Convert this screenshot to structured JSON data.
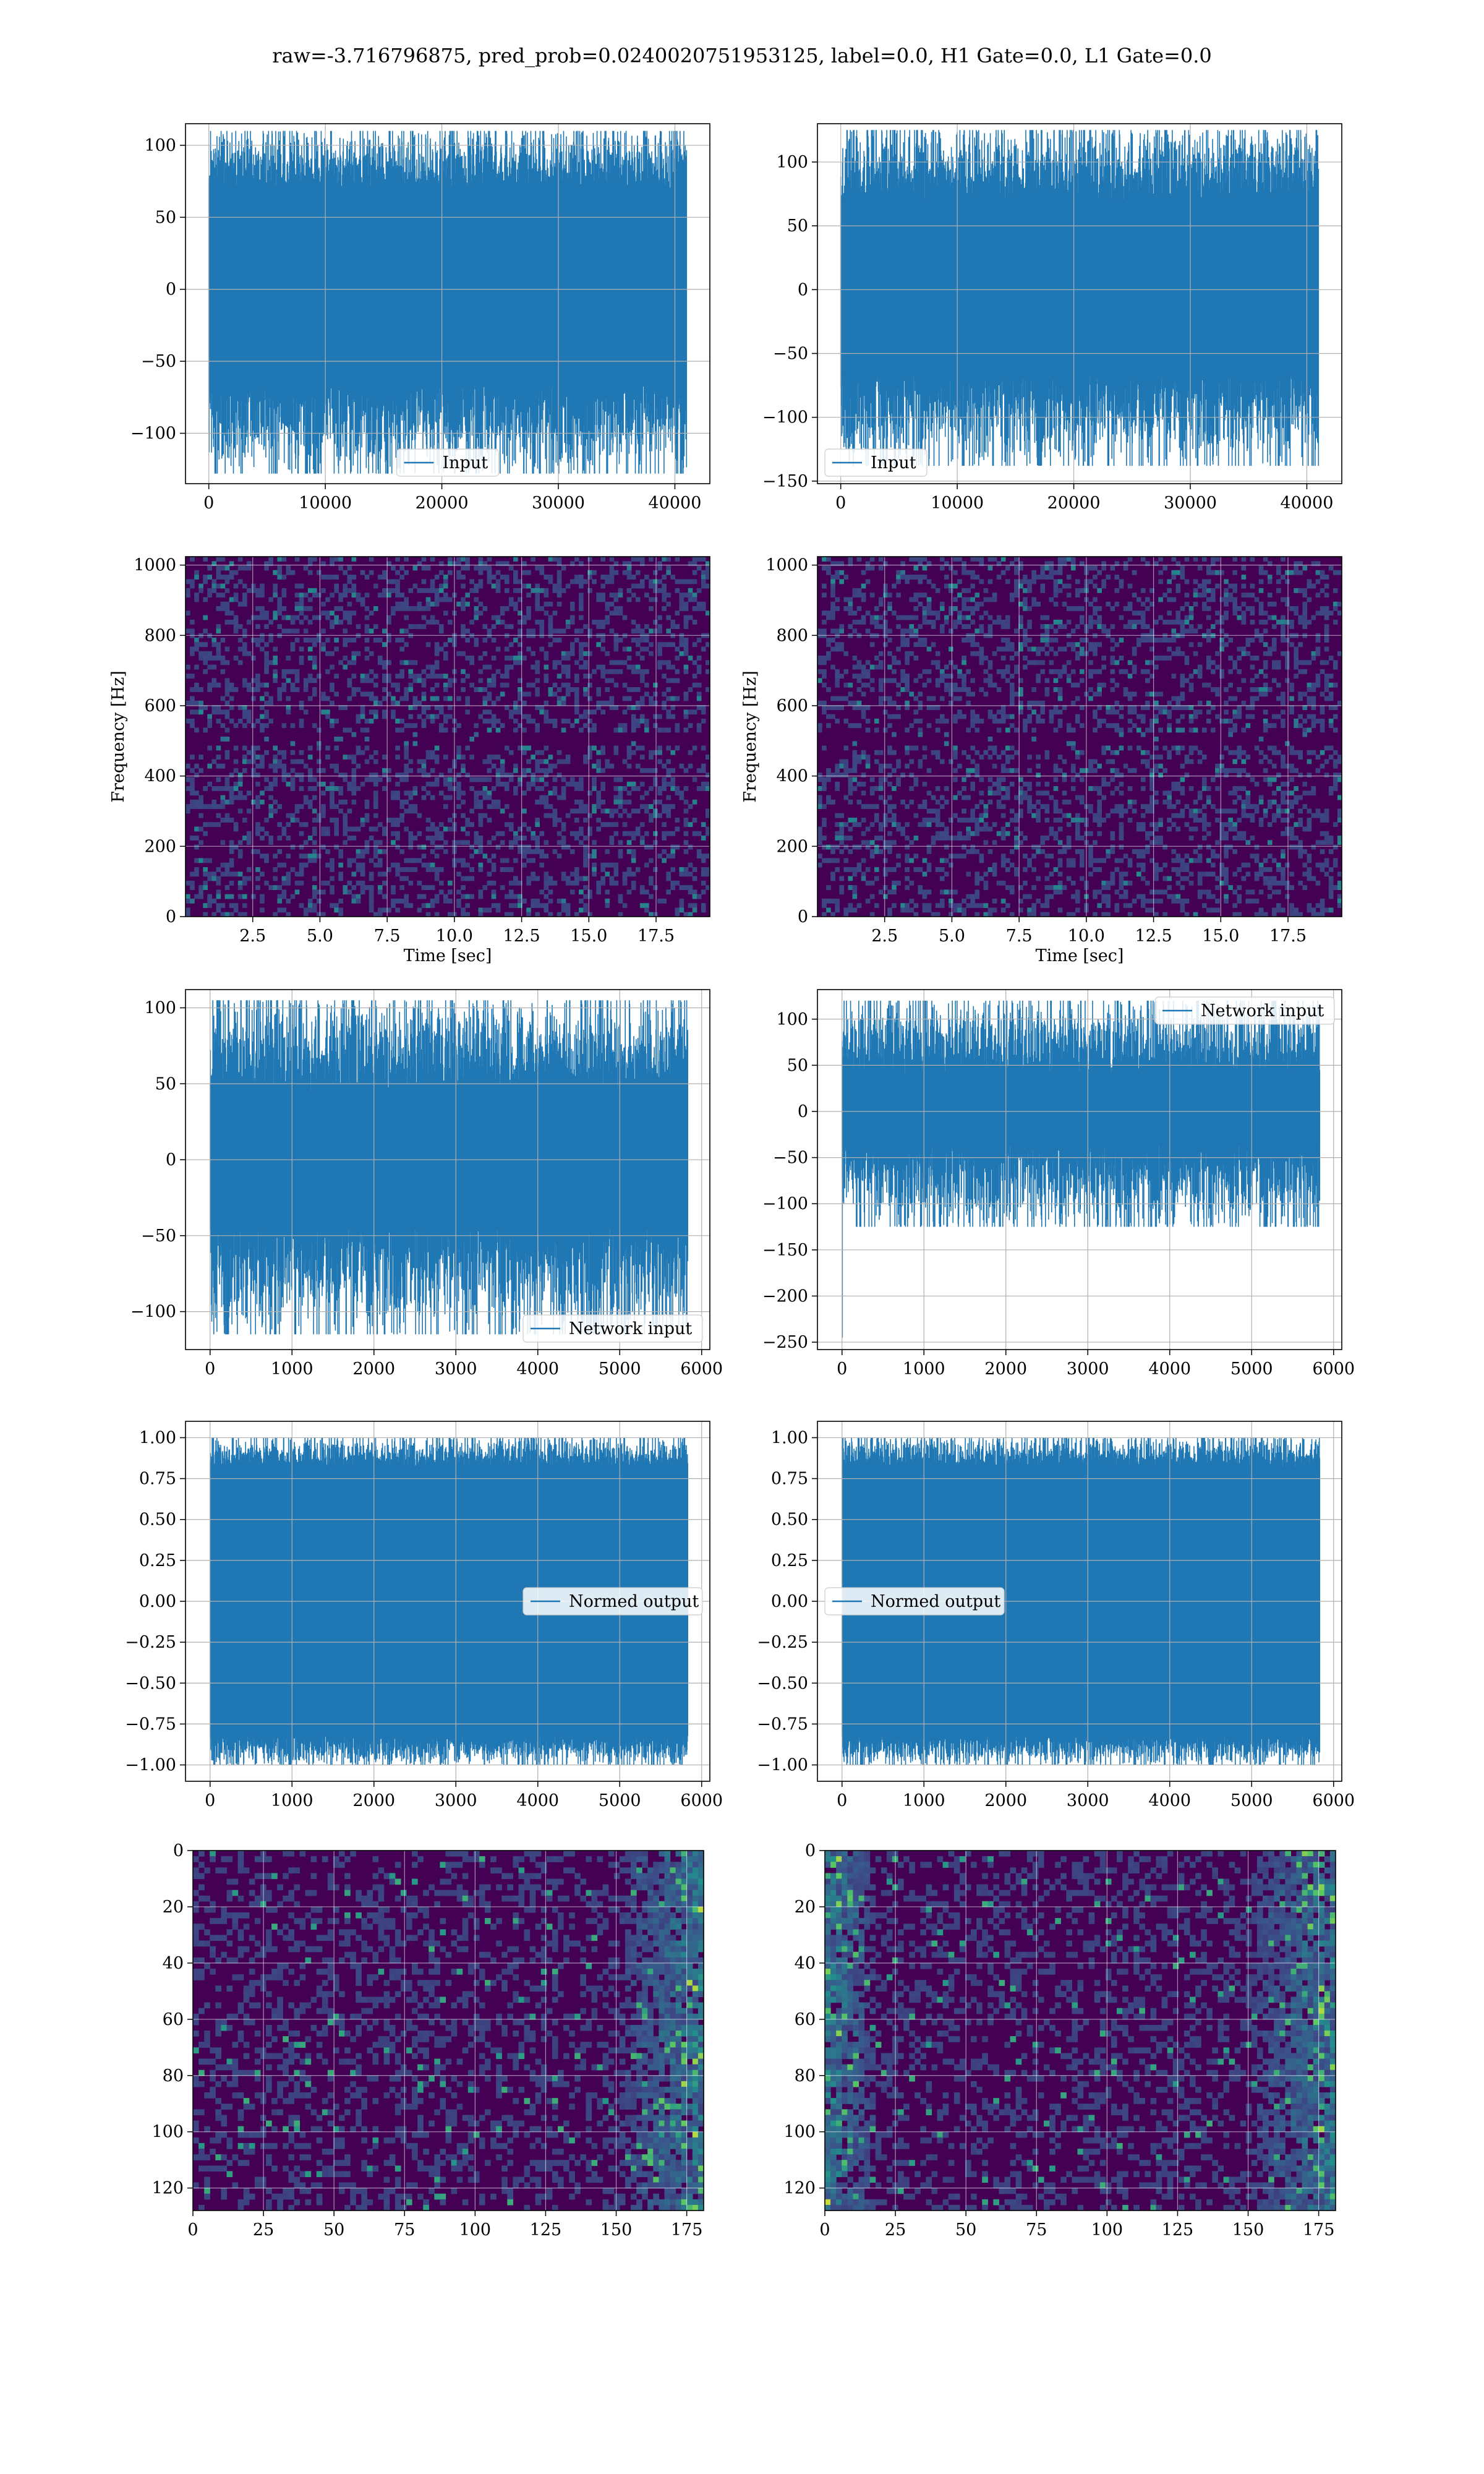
{
  "figure": {
    "suptitle": "raw=-3.716796875, pred_prob=0.0240020751953125, label=0.0, H1 Gate=0.0, L1 Gate=0.0"
  },
  "colors": {
    "line": "#1f77b4",
    "viridis_low": "#440154",
    "viridis_mid": "#21918c",
    "viridis_high": "#fde725",
    "grid": "#b0b0b0"
  },
  "chart_data": [
    {
      "id": "r1c1",
      "type": "line",
      "xlim": [
        -2000,
        43000
      ],
      "ylim": [
        -135,
        115
      ],
      "xticks": [
        0,
        10000,
        20000,
        30000,
        40000
      ],
      "yticks": [
        -100,
        -50,
        0,
        50,
        100
      ],
      "xlabel": "",
      "ylabel": "",
      "legend": {
        "label": "Input",
        "loc": "lower center"
      },
      "series": [
        {
          "name": "Input",
          "x_range": [
            0,
            41000
          ],
          "envelope": [
            -128,
            110
          ],
          "core": [
            -65,
            70
          ]
        }
      ],
      "grid": true
    },
    {
      "id": "r1c2",
      "type": "line",
      "xlim": [
        -2000,
        43000
      ],
      "ylim": [
        -152,
        130
      ],
      "xticks": [
        0,
        10000,
        20000,
        30000,
        40000
      ],
      "yticks": [
        -150,
        -100,
        -50,
        0,
        50,
        100
      ],
      "xlabel": "",
      "ylabel": "",
      "legend": {
        "label": "Input",
        "loc": "lower left"
      },
      "series": [
        {
          "name": "Input",
          "x_range": [
            0,
            41000
          ],
          "envelope": [
            -138,
            125
          ],
          "core": [
            -65,
            70
          ]
        }
      ],
      "grid": true
    },
    {
      "id": "r2c1",
      "type": "heatmap",
      "xlim": [
        0,
        19.5
      ],
      "ylim": [
        0,
        1024
      ],
      "xticks": [
        2.5,
        5.0,
        7.5,
        10.0,
        12.5,
        15.0,
        17.5
      ],
      "yticks": [
        0,
        200,
        400,
        600,
        800,
        1000
      ],
      "xlabel": "Time [sec]",
      "ylabel": "Frequency [Hz]",
      "colormap": "viridis",
      "grid": true
    },
    {
      "id": "r2c2",
      "type": "heatmap",
      "xlim": [
        0,
        19.5
      ],
      "ylim": [
        0,
        1024
      ],
      "xticks": [
        2.5,
        5.0,
        7.5,
        10.0,
        12.5,
        15.0,
        17.5
      ],
      "yticks": [
        0,
        200,
        400,
        600,
        800,
        1000
      ],
      "xlabel": "Time [sec]",
      "ylabel": "Frequency [Hz]",
      "colormap": "viridis",
      "grid": true
    },
    {
      "id": "r3c1",
      "type": "line",
      "xlim": [
        -300,
        6100
      ],
      "ylim": [
        -125,
        112
      ],
      "xticks": [
        0,
        1000,
        2000,
        3000,
        4000,
        5000,
        6000
      ],
      "yticks": [
        -100,
        -50,
        0,
        50,
        100
      ],
      "xlabel": "",
      "ylabel": "",
      "legend": {
        "label": "Network input",
        "loc": "lower right"
      },
      "series": [
        {
          "name": "Network input",
          "x_range": [
            0,
            5830
          ],
          "envelope": [
            -115,
            105
          ],
          "core": [
            -42,
            45
          ]
        }
      ],
      "grid": true
    },
    {
      "id": "r3c2",
      "type": "line",
      "xlim": [
        -300,
        6100
      ],
      "ylim": [
        -258,
        132
      ],
      "xticks": [
        0,
        1000,
        2000,
        3000,
        4000,
        5000,
        6000
      ],
      "yticks": [
        -250,
        -200,
        -150,
        -100,
        -50,
        0,
        50,
        100
      ],
      "xlabel": "",
      "ylabel": "",
      "legend": {
        "label": "Network input",
        "loc": "upper right"
      },
      "series": [
        {
          "name": "Network input",
          "x_range": [
            0,
            5830
          ],
          "envelope": [
            -125,
            120
          ],
          "core": [
            -35,
            40
          ],
          "spike": -245
        }
      ],
      "grid": true
    },
    {
      "id": "r4c1",
      "type": "line",
      "xlim": [
        -300,
        6100
      ],
      "ylim": [
        -1.1,
        1.1
      ],
      "xticks": [
        0,
        1000,
        2000,
        3000,
        4000,
        5000,
        6000
      ],
      "yticks": [
        -1.0,
        -0.75,
        -0.5,
        -0.25,
        0.0,
        0.25,
        0.5,
        0.75,
        1.0
      ],
      "ytick_labels": [
        "−1.00",
        "−0.75",
        "−0.50",
        "−0.25",
        "0.00",
        "0.25",
        "0.50",
        "0.75",
        "1.00"
      ],
      "xlabel": "",
      "ylabel": "",
      "legend": {
        "label": "Normed output",
        "loc": "center right"
      },
      "series": [
        {
          "name": "Normed output",
          "x_range": [
            0,
            5830
          ],
          "envelope": [
            -1.0,
            1.0
          ],
          "core": [
            -0.82,
            0.82
          ]
        }
      ],
      "grid": true
    },
    {
      "id": "r4c2",
      "type": "line",
      "xlim": [
        -300,
        6100
      ],
      "ylim": [
        -1.1,
        1.1
      ],
      "xticks": [
        0,
        1000,
        2000,
        3000,
        4000,
        5000,
        6000
      ],
      "yticks": [
        -1.0,
        -0.75,
        -0.5,
        -0.25,
        0.0,
        0.25,
        0.5,
        0.75,
        1.0
      ],
      "ytick_labels": [
        "−1.00",
        "−0.75",
        "−0.50",
        "−0.25",
        "0.00",
        "0.25",
        "0.50",
        "0.75",
        "1.00"
      ],
      "xlabel": "",
      "ylabel": "",
      "legend": {
        "label": "Normed output",
        "loc": "center left"
      },
      "series": [
        {
          "name": "Normed output",
          "x_range": [
            0,
            5830
          ],
          "envelope": [
            -1.0,
            1.0
          ],
          "core": [
            -0.82,
            0.82
          ]
        }
      ],
      "grid": true
    },
    {
      "id": "r5c1",
      "type": "heatmap",
      "xlim": [
        0,
        181
      ],
      "ylim": [
        128,
        0
      ],
      "xticks": [
        0,
        25,
        50,
        75,
        100,
        125,
        150,
        175
      ],
      "yticks": [
        0,
        20,
        40,
        60,
        80,
        100,
        120
      ],
      "xlabel": "",
      "ylabel": "",
      "colormap": "viridis",
      "grid": true
    },
    {
      "id": "r5c2",
      "type": "heatmap",
      "xlim": [
        0,
        181
      ],
      "ylim": [
        128,
        0
      ],
      "xticks": [
        0,
        25,
        50,
        75,
        100,
        125,
        150,
        175
      ],
      "yticks": [
        0,
        20,
        40,
        60,
        80,
        100,
        120
      ],
      "xlabel": "",
      "ylabel": "",
      "colormap": "viridis",
      "grid": true
    }
  ]
}
